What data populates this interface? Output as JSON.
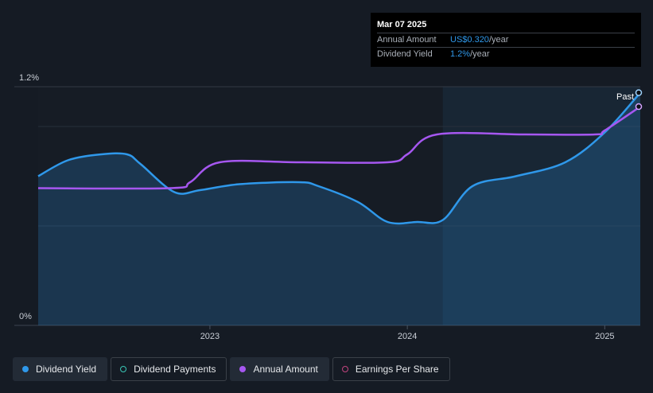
{
  "tooltip": {
    "date": "Mar 07 2025",
    "rows": [
      {
        "label": "Annual Amount",
        "value": "US$0.320",
        "unit": "/year"
      },
      {
        "label": "Dividend Yield",
        "value": "1.2%",
        "unit": "/year"
      }
    ]
  },
  "legend": [
    {
      "label": "Dividend Yield",
      "color": "#2f98ea",
      "style": "filled",
      "active": true
    },
    {
      "label": "Dividend Payments",
      "color": "#39c5b5",
      "style": "hollow",
      "active": false
    },
    {
      "label": "Annual Amount",
      "color": "#a657f0",
      "style": "filled",
      "active": true
    },
    {
      "label": "Earnings Per Share",
      "color": "#c2447f",
      "style": "hollow",
      "active": false
    }
  ],
  "chart_data": {
    "type": "line",
    "y_tick_labels": [
      "1.2%",
      "0%"
    ],
    "x_tick_labels": [
      "2023",
      "2024",
      "2025"
    ],
    "past_label": "Past",
    "ylim": [
      0,
      1.2
    ],
    "xlim": [
      2022.13,
      2025.18
    ],
    "past_region_start": 2024.18,
    "grid": true,
    "series": [
      {
        "name": "Dividend Yield",
        "color": "#2f98ea",
        "points": [
          [
            2022.13,
            0.75
          ],
          [
            2022.28,
            0.83
          ],
          [
            2022.45,
            0.86
          ],
          [
            2022.58,
            0.86
          ],
          [
            2022.65,
            0.81
          ],
          [
            2022.82,
            0.67
          ],
          [
            2022.95,
            0.68
          ],
          [
            2023.15,
            0.71
          ],
          [
            2023.45,
            0.72
          ],
          [
            2023.55,
            0.7
          ],
          [
            2023.75,
            0.62
          ],
          [
            2023.9,
            0.52
          ],
          [
            2024.05,
            0.52
          ],
          [
            2024.18,
            0.53
          ],
          [
            2024.33,
            0.7
          ],
          [
            2024.55,
            0.75
          ],
          [
            2024.8,
            0.82
          ],
          [
            2025.0,
            0.97
          ],
          [
            2025.18,
            1.17
          ]
        ]
      },
      {
        "name": "Annual Amount",
        "color": "#a657f0",
        "points": [
          [
            2022.13,
            0.69
          ],
          [
            2022.8,
            0.69
          ],
          [
            2022.9,
            0.72
          ],
          [
            2023.05,
            0.82
          ],
          [
            2023.45,
            0.82
          ],
          [
            2023.9,
            0.82
          ],
          [
            2024.0,
            0.86
          ],
          [
            2024.15,
            0.96
          ],
          [
            2024.6,
            0.96
          ],
          [
            2024.95,
            0.96
          ],
          [
            2025.0,
            0.98
          ],
          [
            2025.18,
            1.1
          ]
        ]
      }
    ]
  }
}
